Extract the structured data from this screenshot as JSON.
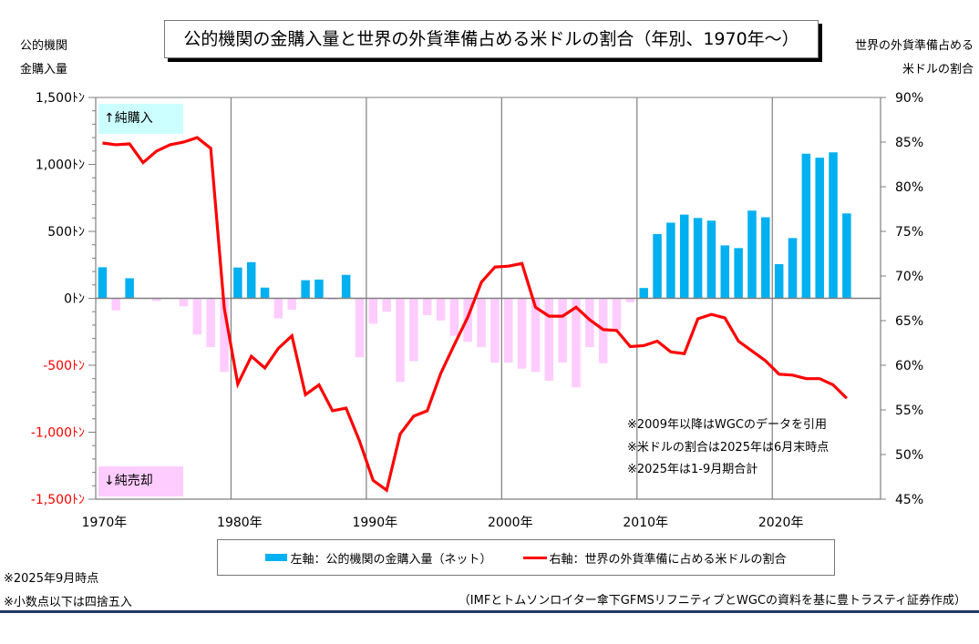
{
  "chart_data": {
    "type": "bar+line",
    "title": "公的機関の金購入量と世界の外貨準備占める米ドルの割合（年別、1970年～）",
    "left_axis": {
      "title_lines": [
        "公的機関",
        "金購入量"
      ],
      "range": [
        -1500,
        1500
      ],
      "ticks": [
        {
          "value": 1500,
          "label": "1,500ﾄﾝ",
          "color": "#000000"
        },
        {
          "value": 1000,
          "label": "1,000ﾄﾝ",
          "color": "#000000"
        },
        {
          "value": 500,
          "label": "500ﾄﾝ",
          "color": "#000000"
        },
        {
          "value": 0,
          "label": "0ﾄﾝ",
          "color": "#000000"
        },
        {
          "value": -500,
          "label": "-500ﾄﾝ",
          "color": "#FF0000"
        },
        {
          "value": -1000,
          "label": "-1,000ﾄﾝ",
          "color": "#FF0000"
        },
        {
          "value": -1500,
          "label": "-1,500ﾄﾝ",
          "color": "#FF0000"
        }
      ]
    },
    "right_axis": {
      "title_lines": [
        "世界の外貨準備占める",
        "米ドルの割合"
      ],
      "range": [
        45,
        90
      ],
      "ticks": [
        {
          "value": 90,
          "label": "90%"
        },
        {
          "value": 85,
          "label": "85%"
        },
        {
          "value": 80,
          "label": "80%"
        },
        {
          "value": 75,
          "label": "75%"
        },
        {
          "value": 70,
          "label": "70%"
        },
        {
          "value": 65,
          "label": "65%"
        },
        {
          "value": 60,
          "label": "60%"
        },
        {
          "value": 55,
          "label": "55%"
        },
        {
          "value": 50,
          "label": "50%"
        },
        {
          "value": 45,
          "label": "45%"
        }
      ]
    },
    "x_axis": {
      "range": [
        1970,
        2025
      ],
      "ticks": [
        {
          "value": 1970,
          "label": "1970年"
        },
        {
          "value": 1980,
          "label": "1980年"
        },
        {
          "value": 1990,
          "label": "1990年"
        },
        {
          "value": 2000,
          "label": "2000年"
        },
        {
          "value": 2010,
          "label": "2010年"
        },
        {
          "value": 2020,
          "label": "2020年"
        }
      ],
      "vertical_gridlines": [
        1980,
        1990,
        2000,
        2010,
        2020
      ]
    },
    "x": [
      1970,
      1971,
      1972,
      1973,
      1974,
      1975,
      1976,
      1977,
      1978,
      1979,
      1980,
      1981,
      1982,
      1983,
      1984,
      1985,
      1986,
      1987,
      1988,
      1989,
      1990,
      1991,
      1992,
      1993,
      1994,
      1995,
      1996,
      1997,
      1998,
      1999,
      2000,
      2001,
      2002,
      2003,
      2004,
      2005,
      2006,
      2007,
      2008,
      2009,
      2010,
      2011,
      2012,
      2013,
      2014,
      2015,
      2016,
      2017,
      2018,
      2019,
      2020,
      2021,
      2022,
      2023,
      2024,
      2025
    ],
    "series": [
      {
        "name": "左軸：公的機関の金購入量（ネット）",
        "type": "bar",
        "axis": "left",
        "unit": "トン",
        "positive_color": "#00B0F0",
        "negative_color": "#FFCCFF",
        "values": [
          232,
          -90,
          150,
          -5,
          -20,
          -5,
          -60,
          -270,
          -365,
          -550,
          230,
          270,
          80,
          -150,
          -85,
          135,
          140,
          -10,
          175,
          -440,
          -190,
          -100,
          -625,
          -470,
          -125,
          -165,
          -280,
          -325,
          -365,
          -480,
          -480,
          -525,
          -550,
          -615,
          -480,
          -665,
          -365,
          -485,
          -235,
          -30,
          77,
          480,
          565,
          625,
          600,
          580,
          395,
          375,
          655,
          605,
          255,
          450,
          1080,
          1050,
          1090,
          634
        ]
      },
      {
        "name": "右軸：世界の外貨準備に占める米ドルの割合",
        "type": "line",
        "axis": "right",
        "unit": "%",
        "color": "#FF0000",
        "values": [
          84.9,
          84.7,
          84.8,
          82.7,
          84.0,
          84.7,
          85.0,
          85.5,
          84.3,
          66.4,
          57.9,
          61.0,
          59.7,
          61.9,
          63.3,
          56.7,
          57.8,
          54.9,
          55.2,
          51.5,
          47.1,
          46.0,
          52.3,
          54.3,
          54.9,
          59.1,
          62.3,
          65.4,
          69.3,
          71.0,
          71.1,
          71.4,
          66.5,
          65.5,
          65.5,
          66.5,
          65.1,
          64.0,
          63.9,
          62.1,
          62.2,
          62.7,
          61.5,
          61.3,
          65.2,
          65.7,
          65.3,
          62.7,
          61.6,
          60.5,
          59.0,
          58.9,
          58.5,
          58.5,
          57.8,
          56.3
        ]
      }
    ],
    "legend": {
      "position": "bottom",
      "items": [
        {
          "label": "左軸：公的機関の金購入量（ネット）",
          "color": "#00B0F0",
          "kind": "bar"
        },
        {
          "label": "右軸：世界の外貨準備に占める米ドルの割合",
          "color": "#FF0000",
          "kind": "line"
        }
      ]
    },
    "annotations": {
      "buy_label": "↑純購入",
      "sell_label": "↓純売却",
      "in_chart_notes": [
        "※2009年以降はWGCのデータを引用",
        "※米ドルの割合は2025年は6月末時点",
        "※2025年は1-9月期合計"
      ]
    },
    "grid": false
  },
  "footnotes": {
    "left": [
      "※2025年9月時点",
      "※小数点以下は四捨五入"
    ],
    "source": "（IMFとトムソンロイター傘下GFMSリフニティブとWGCの資料を基に豊トラスティ証券作成）"
  },
  "colors": {
    "bar_positive": "#00B0F0",
    "bar_negative": "#FFCCFF",
    "line": "#FF0000",
    "buy_callout_bg": "#CCFFFF",
    "sell_callout_bg": "#FFCCFF",
    "rule": "#1F3864"
  }
}
